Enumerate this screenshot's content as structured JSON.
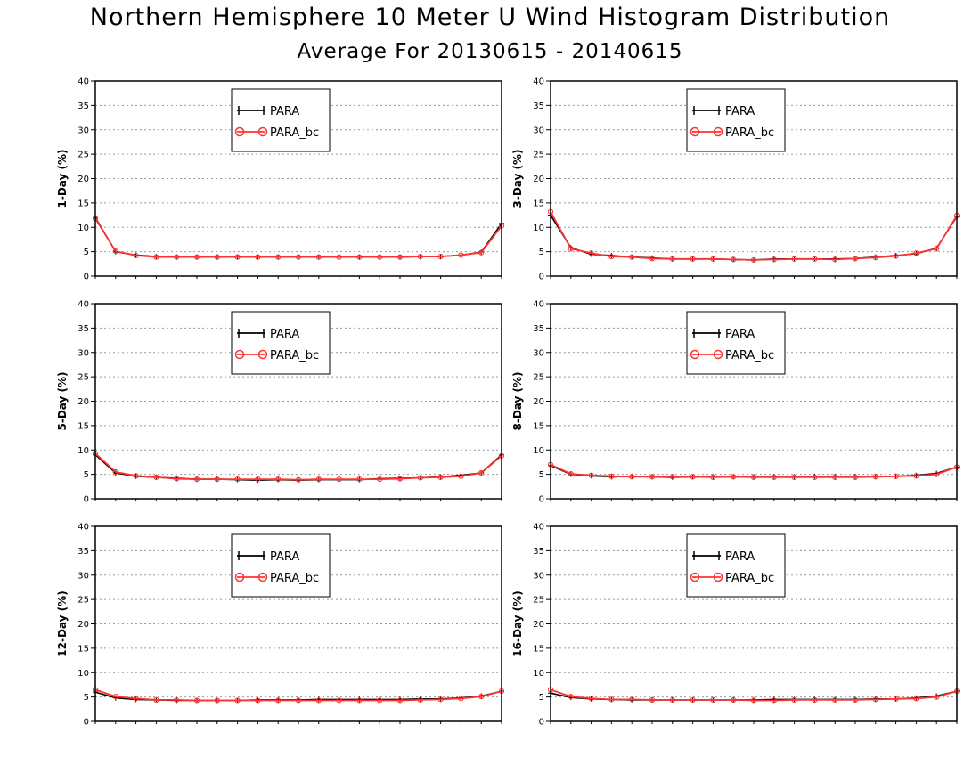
{
  "title": "Northern Hemisphere 10 Meter U Wind Histogram Distribution",
  "subtitle": "Average For 20130615 - 20140615",
  "colors": {
    "PARA": "#000000",
    "PARA_bc": "#ff3333",
    "grid": "#9a9a9a"
  },
  "chart_data": [
    {
      "type": "line",
      "ylabel": "1-Day (%)",
      "ylim": [
        0,
        40
      ],
      "yticks": [
        0,
        5,
        10,
        15,
        20,
        25,
        30,
        35,
        40
      ],
      "legend": "top-center",
      "grid": true,
      "x": [
        1,
        2,
        3,
        4,
        5,
        6,
        7,
        8,
        9,
        10,
        11,
        12,
        13,
        14,
        15,
        16,
        17,
        18,
        19,
        20,
        21
      ],
      "series": [
        {
          "name": "PARA",
          "values": [
            12.0,
            5.0,
            4.3,
            4.0,
            3.9,
            3.9,
            3.9,
            3.9,
            3.9,
            3.9,
            3.9,
            3.9,
            3.9,
            3.9,
            3.9,
            3.9,
            4.0,
            4.0,
            4.3,
            4.9,
            10.8
          ]
        },
        {
          "name": "PARA_bc",
          "values": [
            11.8,
            5.1,
            4.2,
            3.9,
            3.9,
            3.9,
            3.9,
            3.9,
            3.9,
            3.9,
            3.9,
            3.9,
            3.9,
            3.9,
            3.9,
            3.9,
            4.0,
            4.0,
            4.3,
            4.8,
            10.3
          ]
        }
      ]
    },
    {
      "type": "line",
      "ylabel": "3-Day (%)",
      "ylim": [
        0,
        40
      ],
      "yticks": [
        0,
        5,
        10,
        15,
        20,
        25,
        30,
        35,
        40
      ],
      "legend": "top-center",
      "grid": true,
      "x": [
        1,
        2,
        3,
        4,
        5,
        6,
        7,
        8,
        9,
        10,
        11,
        12,
        13,
        14,
        15,
        16,
        17,
        18,
        19,
        20,
        21
      ],
      "series": [
        {
          "name": "PARA",
          "values": [
            12.5,
            5.8,
            4.5,
            4.2,
            3.9,
            3.7,
            3.5,
            3.5,
            3.5,
            3.4,
            3.3,
            3.5,
            3.5,
            3.5,
            3.5,
            3.6,
            3.9,
            4.2,
            4.6,
            5.7,
            12.2
          ]
        },
        {
          "name": "PARA_bc",
          "values": [
            13.2,
            5.6,
            4.7,
            4.0,
            3.9,
            3.6,
            3.5,
            3.5,
            3.5,
            3.4,
            3.3,
            3.4,
            3.5,
            3.5,
            3.4,
            3.6,
            3.8,
            4.1,
            4.7,
            5.6,
            12.4
          ]
        }
      ]
    },
    {
      "type": "line",
      "ylabel": "5-Day (%)",
      "ylim": [
        0,
        40
      ],
      "yticks": [
        0,
        5,
        10,
        15,
        20,
        25,
        30,
        35,
        40
      ],
      "legend": "top-center",
      "grid": true,
      "x": [
        1,
        2,
        3,
        4,
        5,
        6,
        7,
        8,
        9,
        10,
        11,
        12,
        13,
        14,
        15,
        16,
        17,
        18,
        19,
        20,
        21
      ],
      "series": [
        {
          "name": "PARA",
          "values": [
            9.0,
            5.3,
            4.6,
            4.4,
            4.2,
            4.0,
            4.0,
            3.9,
            3.8,
            3.9,
            3.8,
            3.9,
            3.9,
            3.9,
            4.1,
            4.2,
            4.3,
            4.5,
            4.8,
            5.3,
            9.0
          ]
        },
        {
          "name": "PARA_bc",
          "values": [
            9.3,
            5.5,
            4.7,
            4.4,
            4.1,
            4.0,
            4.0,
            4.0,
            4.0,
            4.0,
            3.9,
            4.0,
            4.0,
            4.0,
            4.0,
            4.1,
            4.3,
            4.4,
            4.6,
            5.3,
            8.8
          ]
        }
      ]
    },
    {
      "type": "line",
      "ylabel": "8-Day (%)",
      "ylim": [
        0,
        40
      ],
      "yticks": [
        0,
        5,
        10,
        15,
        20,
        25,
        30,
        35,
        40
      ],
      "legend": "top-center",
      "grid": true,
      "x": [
        1,
        2,
        3,
        4,
        5,
        6,
        7,
        8,
        9,
        10,
        11,
        12,
        13,
        14,
        15,
        16,
        17,
        18,
        19,
        20,
        21
      ],
      "series": [
        {
          "name": "PARA",
          "values": [
            6.8,
            5.0,
            4.7,
            4.5,
            4.6,
            4.5,
            4.4,
            4.5,
            4.5,
            4.5,
            4.5,
            4.5,
            4.5,
            4.6,
            4.6,
            4.6,
            4.6,
            4.6,
            4.8,
            5.2,
            6.5
          ]
        },
        {
          "name": "PARA_bc",
          "values": [
            7.0,
            5.1,
            4.8,
            4.6,
            4.5,
            4.5,
            4.5,
            4.5,
            4.4,
            4.5,
            4.4,
            4.4,
            4.4,
            4.4,
            4.4,
            4.4,
            4.5,
            4.6,
            4.7,
            5.0,
            6.5
          ]
        }
      ]
    },
    {
      "type": "line",
      "ylabel": "12-Day (%)",
      "ylim": [
        0,
        40
      ],
      "yticks": [
        0,
        5,
        10,
        15,
        20,
        25,
        30,
        35,
        40
      ],
      "legend": "top-center",
      "grid": true,
      "x": [
        1,
        2,
        3,
        4,
        5,
        6,
        7,
        8,
        9,
        10,
        11,
        12,
        13,
        14,
        15,
        16,
        17,
        18,
        19,
        20,
        21
      ],
      "series": [
        {
          "name": "PARA",
          "values": [
            6.0,
            4.8,
            4.5,
            4.4,
            4.3,
            4.3,
            4.3,
            4.3,
            4.4,
            4.4,
            4.4,
            4.5,
            4.5,
            4.5,
            4.5,
            4.5,
            4.6,
            4.6,
            4.8,
            5.2,
            6.2
          ]
        },
        {
          "name": "PARA_bc",
          "values": [
            6.5,
            5.1,
            4.7,
            4.4,
            4.4,
            4.3,
            4.3,
            4.3,
            4.3,
            4.3,
            4.3,
            4.3,
            4.3,
            4.3,
            4.3,
            4.3,
            4.4,
            4.5,
            4.7,
            5.1,
            6.2
          ]
        }
      ]
    },
    {
      "type": "line",
      "ylabel": "16-Day (%)",
      "ylim": [
        0,
        40
      ],
      "yticks": [
        0,
        5,
        10,
        15,
        20,
        25,
        30,
        35,
        40
      ],
      "legend": "top-center",
      "grid": true,
      "x": [
        1,
        2,
        3,
        4,
        5,
        6,
        7,
        8,
        9,
        10,
        11,
        12,
        13,
        14,
        15,
        16,
        17,
        18,
        19,
        20,
        21
      ],
      "series": [
        {
          "name": "PARA",
          "values": [
            5.8,
            4.9,
            4.6,
            4.5,
            4.4,
            4.4,
            4.4,
            4.4,
            4.4,
            4.4,
            4.4,
            4.5,
            4.5,
            4.5,
            4.5,
            4.5,
            4.6,
            4.6,
            4.8,
            5.2,
            6.2
          ]
        },
        {
          "name": "PARA_bc",
          "values": [
            6.5,
            5.1,
            4.7,
            4.5,
            4.5,
            4.4,
            4.4,
            4.4,
            4.4,
            4.4,
            4.3,
            4.3,
            4.4,
            4.4,
            4.4,
            4.4,
            4.5,
            4.6,
            4.7,
            5.0,
            6.2
          ]
        }
      ]
    }
  ]
}
